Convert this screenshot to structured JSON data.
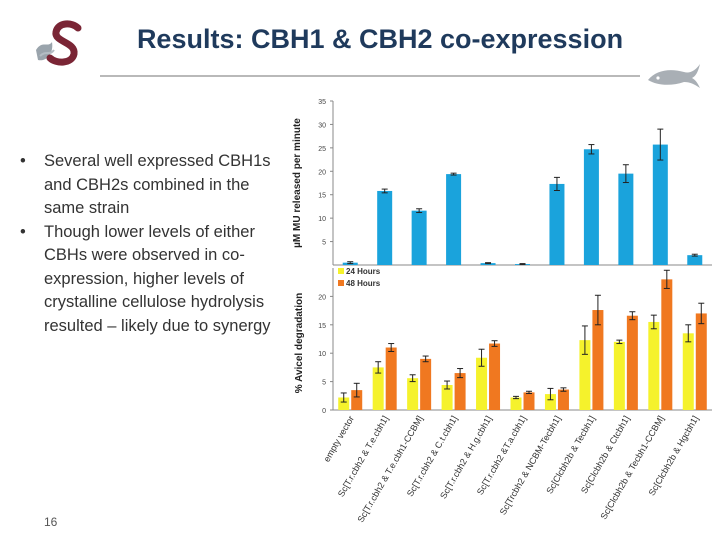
{
  "title": "Results: CBH1 & CBH2 co-expression",
  "logo": {
    "icon": "stellenbosch-s-logo",
    "colors": {
      "letter": "#7a2535",
      "accent": "#9aa4ac"
    }
  },
  "decoration": {
    "icon": "fish-logo-icon"
  },
  "bullets": [
    {
      "symbol": "•",
      "text": "Several well expressed CBH1s and CBH2s  combined in the same strain"
    },
    {
      "symbol": "•",
      "text": "Though lower levels of either CBHs were observed in co-expression, higher levels of crystalline cellulose hydrolysis resulted – likely due to synergy"
    }
  ],
  "page_number": "16",
  "colors": {
    "title": "#1f3a5c",
    "bar_top": "#1aa3dc",
    "bar_24h": "#f5f22c",
    "bar_48h": "#f07820"
  },
  "chart_data": [
    {
      "type": "bar",
      "ylabel": "µM MU released per minute",
      "ylim": [
        0,
        35
      ],
      "yticks": [
        5,
        10,
        15,
        20,
        25,
        30,
        35
      ],
      "categories": [
        "empty vector",
        "Sc[T.r.cbh2 & T.e.cbh1]",
        "Sc[T.r.cbh2 & T.e.cbh1-CCBM]",
        "Sc[T.r.cbh2 & C.t.cbh1]",
        "Sc[T.r.cbh2 & H.g.cbh1]",
        "Sc[T.r.cbh2 &T.a.cbh1]",
        "Sc[Trcbh2 & NCBM-Tecbh1]",
        "Sc[Clcbh2b & Tecbh1]",
        "Sc[Clcbh2b & Ctcbh1]",
        "Sc[Clcbh2b & Tecbh1-CCBM]",
        "Sc[Clcbh2b & Hgcbh1]"
      ],
      "values": [
        0.5,
        15.8,
        11.6,
        19.4,
        0.4,
        0.2,
        17.3,
        24.7,
        19.5,
        25.7,
        2.1
      ],
      "errors": [
        0.2,
        0.4,
        0.4,
        0.2,
        0.1,
        0.1,
        1.4,
        1.0,
        1.9,
        3.3,
        0.2
      ]
    },
    {
      "type": "bar",
      "ylabel": "% Avicel degradation",
      "ylim": [
        0,
        25
      ],
      "yticks": [
        0,
        5,
        10,
        15,
        20
      ],
      "categories": [
        "empty vector",
        "Sc[T.r.cbh2 & T.e.cbh1]",
        "Sc[T.r.cbh2 & T.e.cbh1-CCBM]",
        "Sc[T.r.cbh2 & C.t.cbh1]",
        "Sc[T.r.cbh2 & H.g.cbh1]",
        "Sc[T.r.cbh2 &T.a.cbh1]",
        "Sc[Trcbh2 & NCBM-Tecbh1]",
        "Sc[Clcbh2b & Tecbh1]",
        "Sc[Clcbh2b & Ctcbh1]",
        "Sc[Clcbh2b & Tecbh1-CCBM]",
        "Sc[Clcbh2b & Hgcbh1]"
      ],
      "legend": {
        "position": "top-left"
      },
      "series": [
        {
          "name": "24 Hours",
          "values": [
            2.2,
            7.5,
            5.6,
            4.4,
            9.2,
            2.2,
            2.8,
            12.3,
            12.0,
            15.5,
            13.5
          ],
          "errors": [
            0.8,
            1.0,
            0.6,
            0.7,
            1.5,
            0.2,
            1.0,
            2.5,
            0.3,
            1.2,
            1.5
          ]
        },
        {
          "name": "48 Hours",
          "values": [
            3.5,
            11.0,
            9.0,
            6.5,
            11.7,
            3.1,
            3.6,
            17.6,
            16.6,
            23.0,
            17.0
          ],
          "errors": [
            1.2,
            0.7,
            0.5,
            0.8,
            0.5,
            0.2,
            0.3,
            2.6,
            0.7,
            1.6,
            1.8
          ]
        }
      ]
    }
  ]
}
